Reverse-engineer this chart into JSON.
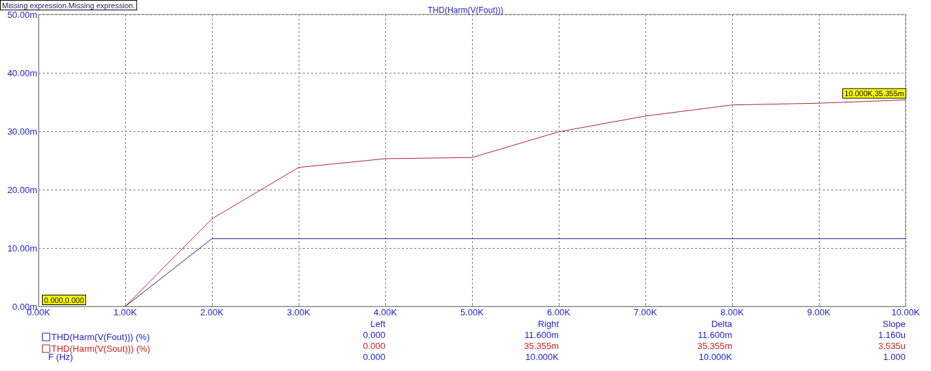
{
  "chart_data": {
    "type": "line",
    "title": "THD(Harm(V(Fout)))",
    "xlim": [
      0,
      10000
    ],
    "xticks": [
      {
        "value": 0,
        "label": "0.00K"
      },
      {
        "value": 1000,
        "label": "1.00K"
      },
      {
        "value": 2000,
        "label": "2.00K"
      },
      {
        "value": 3000,
        "label": "3.00K"
      },
      {
        "value": 4000,
        "label": "4.00K"
      },
      {
        "value": 5000,
        "label": "5.00K"
      },
      {
        "value": 6000,
        "label": "6.00K"
      },
      {
        "value": 7000,
        "label": "7.00K"
      },
      {
        "value": 8000,
        "label": "8.00K"
      },
      {
        "value": 9000,
        "label": "9.00K"
      },
      {
        "value": 10000,
        "label": "10.00K"
      }
    ],
    "ylim": [
      0,
      50
    ],
    "yticks": [
      {
        "value": 0,
        "label": "0.00m"
      },
      {
        "value": 10,
        "label": "10.00m"
      },
      {
        "value": 20,
        "label": "20.00m"
      },
      {
        "value": 30,
        "label": "30.00m"
      },
      {
        "value": 40,
        "label": "40.00m"
      },
      {
        "value": 50,
        "label": "50.00m"
      }
    ],
    "x": [
      1000,
      2000,
      3000,
      4000,
      5000,
      6000,
      7000,
      8000,
      9000,
      10000
    ],
    "series": [
      {
        "name": "THD(Harm(V(Fout))) (%)",
        "color": "#1c1c9c",
        "values": [
          0,
          11.6,
          11.6,
          11.6,
          11.6,
          11.6,
          11.6,
          11.6,
          11.6,
          11.6
        ]
      },
      {
        "name": "THD(Harm(V(Sout))) (%)",
        "color": "#b02030",
        "values": [
          0,
          15,
          23.8,
          25.3,
          25.5,
          29.9,
          32.6,
          34.5,
          34.8,
          35.355
        ]
      }
    ],
    "grid": true,
    "legend": "bottom left",
    "marker": "none",
    "line_style": "solid",
    "annotations": [
      "Missing expression.Missing expression.",
      "0.000,0.000",
      {
        "text": "10.000K,35.355m",
        "x": 10000,
        "y": 35.355
      },
      "Left\tRight\tDelta\tSlope",
      "0.000\t11.600m\t11.600m\t1.160u",
      "0.000\t35.355m\t35.355m\t3.535u",
      "F (Hz)\t0.000\t10.000K\t10.000K\t1.000"
    ]
  }
}
